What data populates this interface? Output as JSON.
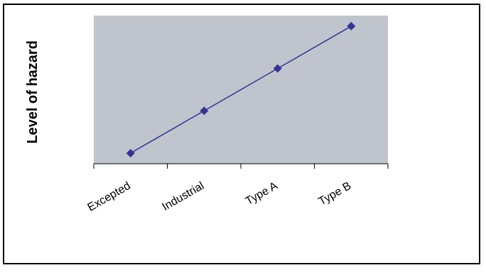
{
  "chart_data": {
    "type": "line",
    "categories": [
      "Excepted",
      "Industrial",
      "Type A",
      "Type B"
    ],
    "series": [
      {
        "values": [
          1,
          2,
          3,
          4
        ]
      }
    ],
    "ylabel": "Level of hazard",
    "xlabel": "",
    "ylim": [
      0.75,
      4.25
    ],
    "grid": false,
    "legend": "none",
    "colors": {
      "plot_background": "#c0c4cc",
      "line": "#333399",
      "marker": "#333399",
      "axis": "#000000"
    }
  }
}
